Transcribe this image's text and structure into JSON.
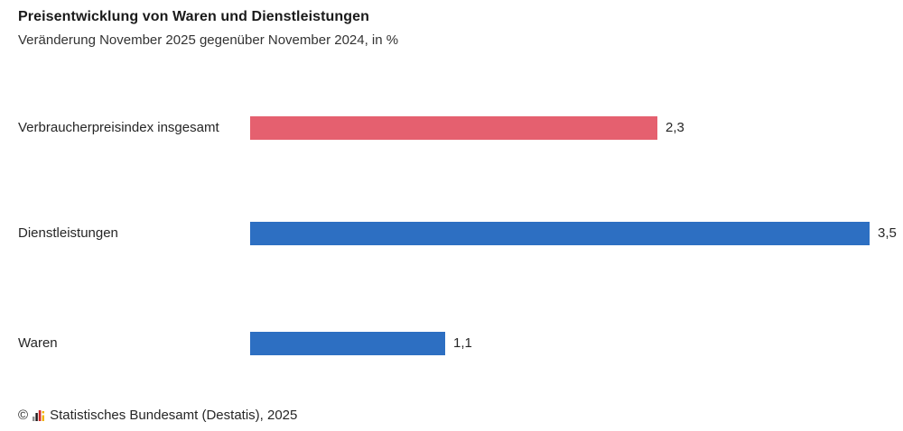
{
  "header": {
    "title": "Preisentwicklung von Waren und Dienstleistungen",
    "subtitle": "Veränderung November 2025 gegenüber November 2024, in %"
  },
  "footer": {
    "copyright_symbol": "©",
    "source_text": "Statistisches Bundesamt (Destatis), 2025",
    "logo_icon": "destatis-mini-barchart-icon",
    "logo_colors": [
      "#8f8f8f",
      "#1a1a1a",
      "#cf2a2a",
      "#f1b300"
    ]
  },
  "colors": {
    "bar_red": "#e5606f",
    "bar_blue": "#2d6fc2",
    "text": "#262626",
    "title_text": "#1a1a1a",
    "background": "#ffffff"
  },
  "chart_data": {
    "type": "bar",
    "orientation": "horizontal",
    "title": "Preisentwicklung von Waren und Dienstleistungen",
    "subtitle": "Veränderung November 2025 gegenüber November 2024, in %",
    "unit": "%",
    "categories": [
      "Verbraucherpreisindex insgesamt",
      "Dienstleistungen",
      "Waren"
    ],
    "values": [
      2.3,
      3.5,
      1.1
    ],
    "value_labels": [
      "2,3",
      "3,5",
      "1,1"
    ],
    "bar_colors": [
      "#e5606f",
      "#2d6fc2",
      "#2d6fc2"
    ],
    "xlim": [
      0,
      3.5
    ],
    "grid": false,
    "legend": false,
    "value_label_position": "end-of-bar",
    "source": "Statistisches Bundesamt (Destatis), 2025"
  }
}
